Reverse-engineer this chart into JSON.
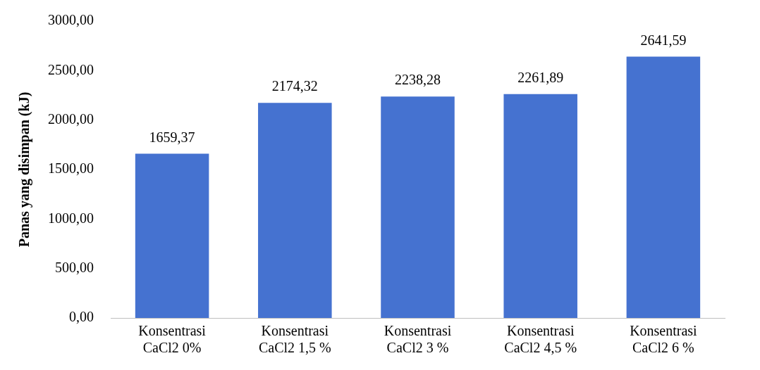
{
  "chart_data": {
    "type": "bar",
    "ylabel": "Panas yang disimpan (kJ)",
    "categories": [
      "Konsentrasi CaCl2 0%",
      "Konsentrasi CaCl2 1,5 %",
      "Konsentrasi CaCl2 3 %",
      "Konsentrasi CaCl2 4,5 %",
      "Konsentrasi CaCl2 6 %"
    ],
    "values": [
      1659.37,
      2174.32,
      2238.28,
      2261.89,
      2641.59
    ],
    "value_labels": [
      "1659,37",
      "2174,32",
      "2238,28",
      "2261,89",
      "2641,59"
    ],
    "color": "#4572d0",
    "ylim": [
      0,
      3000
    ],
    "yticks": [
      {
        "value": 0,
        "label": "0,00"
      },
      {
        "value": 500,
        "label": "500,00"
      },
      {
        "value": 1000,
        "label": "1000,00"
      },
      {
        "value": 1500,
        "label": "1500,00"
      },
      {
        "value": 2000,
        "label": "2000,00"
      },
      {
        "value": 2500,
        "label": "2500,00"
      },
      {
        "value": 3000,
        "label": "3000,00"
      }
    ],
    "grid": false,
    "legend": false
  }
}
